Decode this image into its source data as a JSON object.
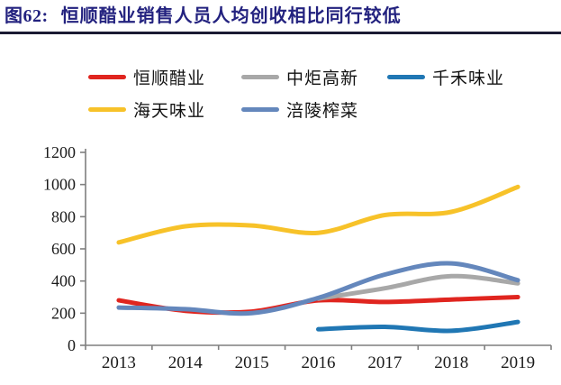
{
  "title": {
    "prefix": "图62:",
    "text": "恒顺醋业销售人员人均创收相比同行较低"
  },
  "colors": {
    "title_color": "#23227F",
    "rule_color": "#1B1B33",
    "axis_color": "#7F7F7F",
    "label_color": "#1A1A1A",
    "background": "#FFFFFF"
  },
  "chart_data": {
    "type": "line",
    "title": "恒顺醋业销售人员人均创收相比同行较低",
    "categories": [
      "2013",
      "2014",
      "2015",
      "2016",
      "2017",
      "2018",
      "2019"
    ],
    "series": [
      {
        "name": "恒顺醋业",
        "slug": "hengshun-vinegar",
        "color": "#E0251F",
        "values": [
          280,
          215,
          210,
          280,
          270,
          285,
          300
        ]
      },
      {
        "name": "中炬高新",
        "slug": "zhongju-hitech",
        "color": "#A8A8A8",
        "values": [
          null,
          null,
          null,
          290,
          355,
          430,
          385
        ]
      },
      {
        "name": "千禾味业",
        "slug": "qianhe-flavour",
        "color": "#2077B4",
        "values": [
          null,
          null,
          null,
          100,
          115,
          90,
          145
        ]
      },
      {
        "name": "海天味业",
        "slug": "haitian-flavour",
        "color": "#F7C229",
        "values": [
          640,
          740,
          745,
          700,
          810,
          830,
          985
        ]
      },
      {
        "name": "涪陵榨菜",
        "slug": "fuling-zhacai",
        "color": "#6487BC",
        "values": [
          235,
          225,
          200,
          295,
          440,
          510,
          405
        ]
      }
    ],
    "xlabel": "",
    "ylabel": "",
    "ylim": [
      0,
      1200
    ],
    "ytick_step": 200,
    "grid": false,
    "smooth": true,
    "legend_position": "top",
    "legend_rows": [
      [
        0,
        1,
        2
      ],
      [
        3,
        4
      ]
    ]
  }
}
